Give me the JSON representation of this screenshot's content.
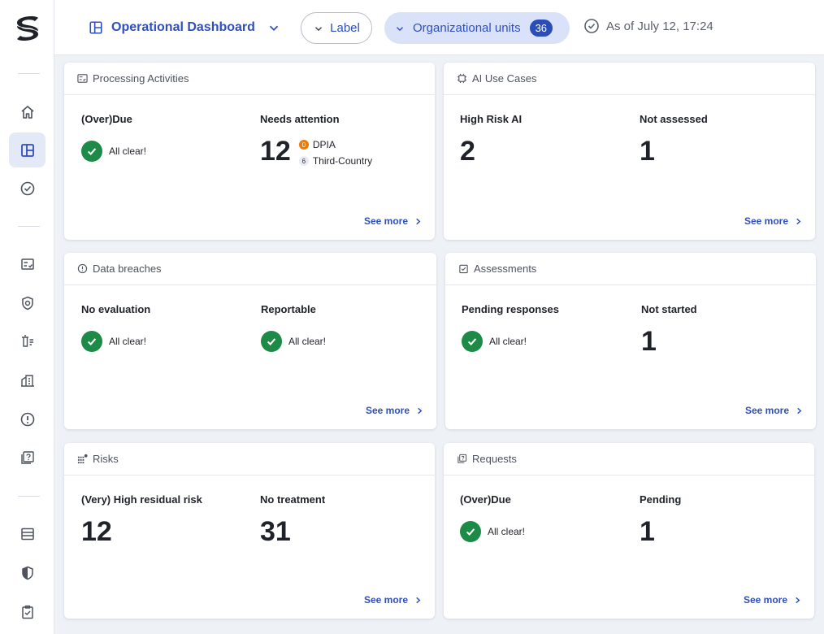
{
  "header": {
    "dashboard_title": "Operational Dashboard",
    "label_filter": "Label",
    "org_units_label": "Organizational units",
    "org_units_count": "36",
    "as_of": "As of July 12, 17:24"
  },
  "sidebar": {
    "items": [
      "home-icon",
      "dashboard-icon",
      "check-circle-icon",
      "checklist-icon",
      "shield-outline-icon",
      "trash-list-icon",
      "building-icon",
      "alert-icon",
      "help-box-icon",
      "storage-icon",
      "shield-half-icon",
      "clipboard-check-icon"
    ]
  },
  "colors": {
    "accent": "#2f4fbf",
    "success": "#1e8a47",
    "warning": "#e97c0b",
    "badge": "#2b4db9"
  },
  "see_more_label": "See more",
  "all_clear_label": "All clear!",
  "cards": {
    "processing": {
      "title": "Processing Activities",
      "col1_title": "(Over)Due",
      "col2_title": "Needs attention",
      "col2_value": "12",
      "sub1_count": "0",
      "sub1_label": "DPIA",
      "sub2_count": "6",
      "sub2_label": "Third-Country"
    },
    "ai": {
      "title": "AI Use Cases",
      "col1_title": "High Risk AI",
      "col1_value": "2",
      "col2_title": "Not assessed",
      "col2_value": "1"
    },
    "breaches": {
      "title": "Data breaches",
      "col1_title": "No evaluation",
      "col2_title": "Reportable"
    },
    "assessments": {
      "title": "Assessments",
      "col1_title": "Pending responses",
      "col2_title": "Not started",
      "col2_value": "1"
    },
    "risks": {
      "title": "Risks",
      "col1_title": "(Very) High residual risk",
      "col1_value": "12",
      "col2_title": "No treatment",
      "col2_value": "31"
    },
    "requests": {
      "title": "Requests",
      "col1_title": "(Over)Due",
      "col2_title": "Pending",
      "col2_value": "1"
    }
  }
}
